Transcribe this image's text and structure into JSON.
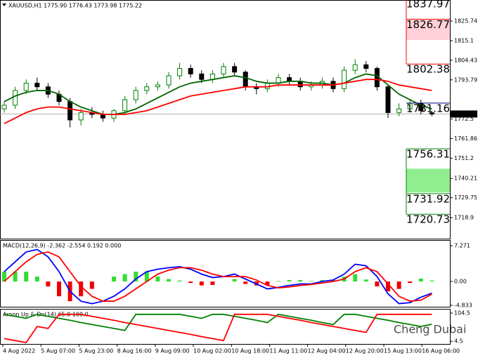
{
  "chart_data": {
    "type": "candlestick",
    "title": "XAUUSD,H1  1775.90 1776.43 1773.98 1775.22",
    "watermark": "Cheng Dubai",
    "ylim": [
      1707.45,
      1837.2
    ],
    "yticks": [
      1825.74,
      1815.1,
      1804.43,
      1793.79,
      1772.5,
      1761.86,
      1751.2,
      1740.21,
      1729.75,
      1718.9
    ],
    "current_price": 1775.22,
    "x_labels": [
      "4 Aug 2022",
      "5 Aug 07:00",
      "5 Aug 23:00",
      "8 Aug 16:00",
      "9 Aug 09:00",
      "10 Aug 02:00",
      "10 Aug 18:00",
      "11 Aug 11:00",
      "12 Aug 04:00",
      "12 Aug 20:00",
      "15 Aug 13:00",
      "16 Aug 06:00"
    ],
    "open": [
      1778,
      1780,
      1788,
      1792,
      1790,
      1786,
      1782,
      1772,
      1776,
      1775,
      1773,
      1777,
      1783,
      1788,
      1790,
      1791,
      1796,
      1800,
      1797,
      1794,
      1797,
      1801,
      1798,
      1790,
      1789,
      1792,
      1795,
      1793,
      1790,
      1791,
      1793,
      1789,
      1799,
      1802,
      1800,
      1790,
      1776,
      1778,
      1781,
      1775.9
    ],
    "high": [
      1782,
      1790,
      1794,
      1795,
      1792,
      1788,
      1784,
      1778,
      1779,
      1777,
      1778,
      1785,
      1790,
      1792,
      1793,
      1798,
      1803,
      1802,
      1799,
      1799,
      1803,
      1803,
      1799,
      1792,
      1794,
      1797,
      1797,
      1795,
      1793,
      1795,
      1795,
      1801,
      1805,
      1804,
      1801,
      1791,
      1781,
      1783,
      1783,
      1776.43
    ],
    "low": [
      1776,
      1778,
      1786,
      1788,
      1784,
      1780,
      1768,
      1769,
      1773,
      1771,
      1771,
      1775,
      1781,
      1786,
      1788,
      1789,
      1794,
      1795,
      1792,
      1792,
      1795,
      1796,
      1788,
      1786,
      1787,
      1790,
      1791,
      1788,
      1788,
      1789,
      1787,
      1787,
      1797,
      1798,
      1788,
      1773,
      1774,
      1776,
      1775,
      1773.98
    ],
    "close": [
      1780,
      1788,
      1792,
      1790,
      1786,
      1782,
      1772,
      1776,
      1775,
      1773,
      1777,
      1783,
      1788,
      1790,
      1791,
      1796,
      1800,
      1797,
      1794,
      1797,
      1801,
      1798,
      1790,
      1789,
      1792,
      1795,
      1793,
      1790,
      1791,
      1793,
      1789,
      1799,
      1802,
      1800,
      1790,
      1776,
      1778,
      1781,
      1777,
      1775.22
    ],
    "series": [
      {
        "color": "#006400",
        "values": [
          1782,
          1785,
          1787,
          1788,
          1788,
          1786,
          1782,
          1779,
          1777,
          1775,
          1775,
          1776,
          1778,
          1781,
          1784,
          1787,
          1790,
          1792,
          1793,
          1794,
          1795,
          1796,
          1795,
          1793,
          1792,
          1792,
          1793,
          1793,
          1792,
          1792,
          1791,
          1792,
          1795,
          1797,
          1796,
          1791,
          1786,
          1783,
          1780,
          1778
        ]
      },
      {
        "color": "#ff0000",
        "values": [
          1770,
          1773,
          1776,
          1778,
          1779,
          1779,
          1778,
          1777,
          1776,
          1775,
          1775,
          1775,
          1776,
          1777,
          1779,
          1781,
          1783,
          1785,
          1786,
          1787,
          1788,
          1789,
          1790,
          1790,
          1790,
          1791,
          1791,
          1791,
          1791,
          1791,
          1791,
          1792,
          1793,
          1794,
          1794,
          1793,
          1791,
          1790,
          1789,
          1788
        ]
      }
    ],
    "levels": [
      {
        "value": 1837.97,
        "color": "#ff0000"
      },
      {
        "value": 1826.77,
        "color": "#ff0000"
      },
      {
        "value": 1802.38,
        "color": "#ff0000"
      },
      {
        "value": 1781.16,
        "color": "#000080"
      },
      {
        "value": 1756.31,
        "color": "#008000"
      },
      {
        "value": 1731.92,
        "color": "#008000"
      },
      {
        "value": 1720.73,
        "color": "#008000"
      }
    ],
    "zones": [
      {
        "from": 1815.5,
        "to": 1826.77,
        "color": "#ffd0d8"
      },
      {
        "from": 1732.6,
        "to": 1745.5,
        "color": "#90ee90"
      }
    ],
    "macd": {
      "title": "MACD(12,26,9) -2.362 -2.554 0.192 0.000",
      "ylim": [
        -5.13,
        8.27
      ],
      "yticks": [
        7.271,
        {
          "value": 0,
          "label": "0.00"
        },
        -4.833
      ],
      "histogram": [
        2,
        2,
        2,
        1,
        -1,
        -3,
        -4,
        -3,
        -1.5,
        0,
        1,
        1.5,
        2,
        2,
        1,
        0.5,
        0.2,
        -0.3,
        -0.8,
        -0.7,
        0,
        0.5,
        -0.5,
        -0.8,
        -0.7,
        0.1,
        0.3,
        0.3,
        0.1,
        0.3,
        0.3,
        1,
        1.5,
        0.4,
        -1,
        -2,
        -1.5,
        -0.3,
        0.6,
        0.192
      ],
      "series": [
        {
          "color": "#0000ff",
          "values": [
            2,
            4,
            6,
            6.5,
            5,
            2,
            -2,
            -4,
            -4.5,
            -4,
            -3,
            -1.5,
            0.5,
            2,
            2.5,
            2.8,
            3,
            2.5,
            1.5,
            0.8,
            1,
            1.5,
            0.5,
            -0.5,
            -1.5,
            -1.2,
            -0.8,
            -0.5,
            -0.5,
            0,
            0.3,
            1.5,
            3.5,
            3.2,
            1,
            -2.5,
            -4.5,
            -4.3,
            -3.2,
            -2.362
          ]
        },
        {
          "color": "#ff0000",
          "values": [
            0,
            2,
            4,
            5.5,
            6,
            5,
            2,
            -1,
            -3,
            -4,
            -4,
            -3,
            -1.5,
            0,
            1.5,
            2.3,
            2.8,
            2.8,
            2.3,
            1.5,
            1,
            1,
            1,
            0.3,
            -0.8,
            -1.3,
            -1.1,
            -0.8,
            -0.6,
            -0.3,
            0,
            0.5,
            2,
            2.8,
            2,
            -0.5,
            -3,
            -4,
            -3.8,
            -2.554
          ]
        }
      ]
    },
    "aroon": {
      "title": "Aroon Up & Dn(14) 65.0 100.0",
      "ylim": [
        -5,
        117
      ],
      "yticks": [
        104.5,
        4.5
      ],
      "series": [
        {
          "color": "#008000",
          "values": [
            100,
            93,
            86,
            100,
            93,
            86,
            79,
            71,
            64,
            57,
            50,
            43,
            100,
            100,
            100,
            100,
            100,
            93,
            86,
            100,
            100,
            93,
            86,
            79,
            71,
            100,
            93,
            86,
            79,
            71,
            64,
            100,
            100,
            93,
            86,
            79,
            71,
            64,
            57,
            65
          ]
        },
        {
          "color": "#ff0000",
          "values": [
            14,
            7,
            0,
            57,
            50,
            100,
            100,
            100,
            93,
            86,
            79,
            71,
            64,
            57,
            50,
            43,
            36,
            29,
            21,
            14,
            7,
            100,
            100,
            100,
            100,
            93,
            86,
            79,
            71,
            64,
            57,
            50,
            43,
            36,
            100,
            100,
            100,
            100,
            100,
            100
          ]
        }
      ]
    }
  }
}
